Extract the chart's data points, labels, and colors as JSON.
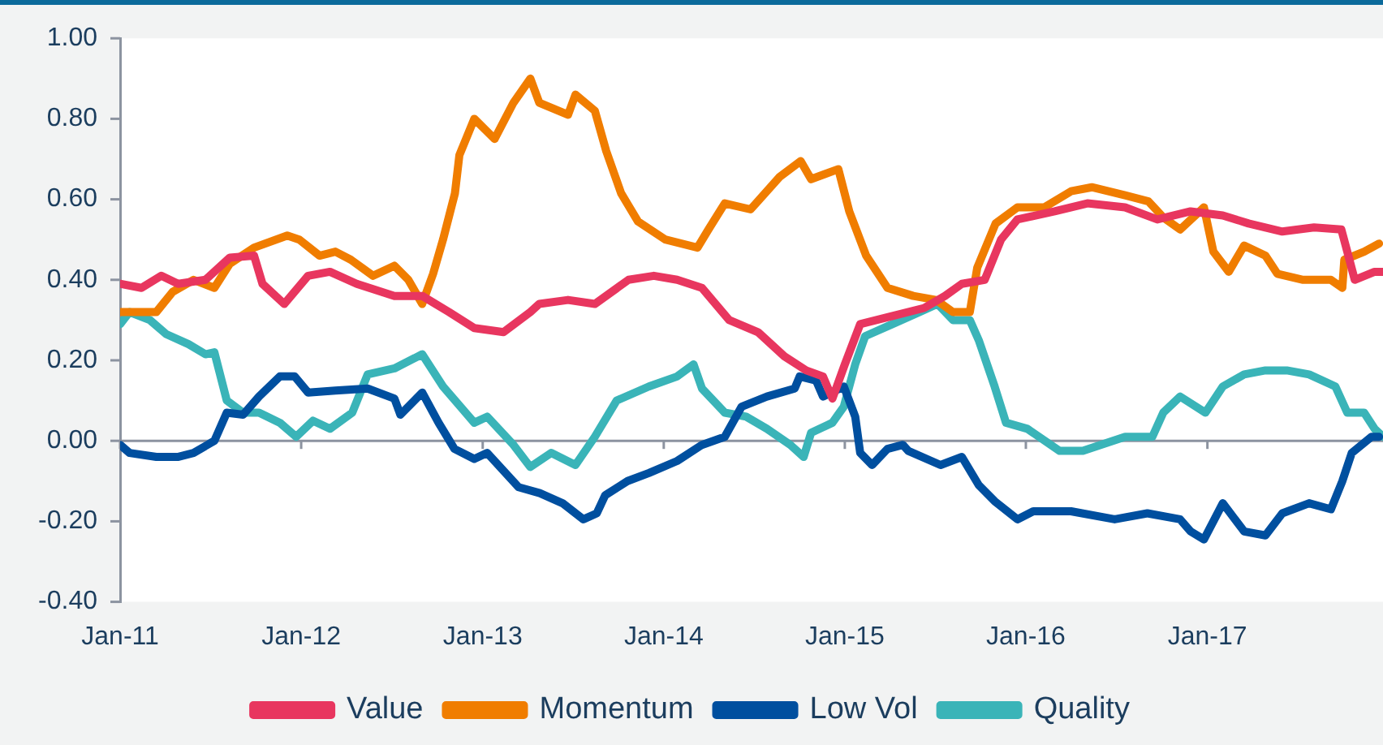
{
  "chart_data": {
    "type": "line",
    "xlim": [
      "2011-01-01",
      "2017-12-21"
    ],
    "ylim": [
      -0.4,
      1
    ],
    "xticks": [
      {
        "value": "2011-01",
        "label": "Jan-11"
      },
      {
        "value": "2012-01",
        "label": "Jan-12"
      },
      {
        "value": "2013-01",
        "label": "Jan-13"
      },
      {
        "value": "2014-01",
        "label": "Jan-14"
      },
      {
        "value": "2015-01",
        "label": "Jan-15"
      },
      {
        "value": "2016-01",
        "label": "Jan-16"
      },
      {
        "value": "2017-01",
        "label": "Jan-17"
      }
    ],
    "yticks": [
      {
        "value": -0.4,
        "label": "-0.40"
      },
      {
        "value": -0.2,
        "label": "-0.20"
      },
      {
        "value": 0,
        "label": "0.00"
      },
      {
        "value": 0.2,
        "label": "0.20"
      },
      {
        "value": 0.4,
        "label": "0.40"
      },
      {
        "value": 0.6,
        "label": "0.60"
      },
      {
        "value": 0.8,
        "label": "0.80"
      },
      {
        "value": 1,
        "label": "1.00"
      }
    ],
    "grid": false,
    "ref_lines": [
      {
        "axis": "y",
        "value": 0,
        "color": "#8c93a0",
        "line_style": "solid"
      }
    ],
    "legend": "bottom",
    "marker": "none",
    "line_style": "solid",
    "series": [
      {
        "name": "Value",
        "color": "#e8365f",
        "x": [
          "2011-01-01",
          "2011-02-13",
          "2011-03-25",
          "2011-04-28",
          "2011-06-22",
          "2011-08-10",
          "2011-09-28",
          "2011-10-15",
          "2011-11-28",
          "2012-01-15",
          "2012-02-28",
          "2012-04-22",
          "2012-07-07",
          "2012-09-01",
          "2012-10-25",
          "2012-12-15",
          "2013-02-12",
          "2013-04-07",
          "2013-04-25",
          "2013-06-22",
          "2013-08-15",
          "2013-10-22",
          "2013-12-12",
          "2014-01-28",
          "2014-03-19",
          "2014-05-13",
          "2014-07-10",
          "2014-09-01",
          "2014-10-15",
          "2014-11-18",
          "2014-12-07",
          "2015-01-01",
          "2015-02-01",
          "2015-04-07",
          "2015-06-10",
          "2015-07-22",
          "2015-08-25",
          "2015-10-10",
          "2015-11-12",
          "2015-12-15",
          "2016-02-28",
          "2016-05-04",
          "2016-07-19",
          "2016-09-22",
          "2016-11-28",
          "2017-02-01",
          "2017-03-25",
          "2017-06-01",
          "2017-08-04",
          "2017-09-28",
          "2017-10-10",
          "2017-10-25",
          "2017-12-04",
          "2017-12-21"
        ],
        "values": [
          0.39,
          0.38,
          0.41,
          0.39,
          0.4,
          0.455,
          0.46,
          0.39,
          0.34,
          0.41,
          0.42,
          0.39,
          0.36,
          0.36,
          0.32,
          0.28,
          0.27,
          0.32,
          0.34,
          0.35,
          0.34,
          0.4,
          0.41,
          0.4,
          0.38,
          0.3,
          0.27,
          0.21,
          0.175,
          0.16,
          0.105,
          0.19,
          0.29,
          0.31,
          0.33,
          0.36,
          0.39,
          0.4,
          0.5,
          0.55,
          0.57,
          0.59,
          0.58,
          0.55,
          0.57,
          0.56,
          0.54,
          0.52,
          0.53,
          0.525,
          0.47,
          0.4,
          0.42,
          0.42
        ]
      },
      {
        "name": "Momentum",
        "color": "#f07d00",
        "x": [
          "2011-01-01",
          "2011-02-13",
          "2011-03-15",
          "2011-04-17",
          "2011-05-29",
          "2011-07-10",
          "2011-08-10",
          "2011-09-28",
          "2011-12-04",
          "2011-12-28",
          "2012-02-07",
          "2012-03-10",
          "2012-04-10",
          "2012-05-25",
          "2012-07-07",
          "2012-08-04",
          "2012-09-01",
          "2012-09-23",
          "2012-10-13",
          "2012-11-06",
          "2012-11-15",
          "2012-12-15",
          "2013-01-25",
          "2013-03-04",
          "2013-04-07",
          "2013-04-25",
          "2013-06-22",
          "2013-07-07",
          "2013-08-15",
          "2013-09-07",
          "2013-10-07",
          "2013-11-10",
          "2014-01-04",
          "2014-03-10",
          "2014-04-01",
          "2014-05-04",
          "2014-06-25",
          "2014-08-22",
          "2014-10-04",
          "2014-10-25",
          "2014-12-19",
          "2015-01-10",
          "2015-02-13",
          "2015-03-28",
          "2015-05-19",
          "2015-07-04",
          "2015-08-07",
          "2015-09-10",
          "2015-09-25",
          "2015-11-01",
          "2015-12-15",
          "2016-02-07",
          "2016-04-01",
          "2016-05-13",
          "2016-07-19",
          "2016-09-04",
          "2016-10-04",
          "2016-11-07",
          "2016-12-25",
          "2017-01-13",
          "2017-02-13",
          "2017-03-16",
          "2017-04-28",
          "2017-05-22",
          "2017-07-13",
          "2017-09-07",
          "2017-09-30",
          "2017-10-04",
          "2017-11-13",
          "2017-12-13"
        ],
        "values": [
          0.32,
          0.32,
          0.32,
          0.37,
          0.4,
          0.38,
          0.44,
          0.48,
          0.51,
          0.5,
          0.46,
          0.47,
          0.45,
          0.41,
          0.435,
          0.4,
          0.34,
          0.415,
          0.5,
          0.615,
          0.71,
          0.8,
          0.75,
          0.84,
          0.9,
          0.84,
          0.81,
          0.86,
          0.82,
          0.72,
          0.615,
          0.545,
          0.5,
          0.48,
          0.525,
          0.59,
          0.575,
          0.655,
          0.695,
          0.65,
          0.675,
          0.57,
          0.46,
          0.38,
          0.36,
          0.35,
          0.32,
          0.32,
          0.43,
          0.54,
          0.58,
          0.58,
          0.62,
          0.63,
          0.61,
          0.595,
          0.555,
          0.525,
          0.58,
          0.47,
          0.42,
          0.485,
          0.46,
          0.415,
          0.4,
          0.4,
          0.38,
          0.45,
          0.47,
          0.49
        ]
      },
      {
        "name": "Low Vol",
        "color": "#004f9f",
        "x": [
          "2011-01-01",
          "2011-01-20",
          "2011-03-15",
          "2011-04-27",
          "2011-05-29",
          "2011-07-10",
          "2011-08-04",
          "2011-09-06",
          "2011-10-08",
          "2011-11-19",
          "2011-12-19",
          "2012-01-15",
          "2012-03-10",
          "2012-05-14",
          "2012-07-07",
          "2012-07-19",
          "2012-09-01",
          "2012-10-04",
          "2012-11-05",
          "2012-12-15",
          "2013-01-10",
          "2013-03-14",
          "2013-04-26",
          "2013-06-11",
          "2013-07-23",
          "2013-08-19",
          "2013-09-05",
          "2013-10-20",
          "2013-12-02",
          "2014-01-28",
          "2014-03-19",
          "2014-05-04",
          "2014-06-07",
          "2014-07-28",
          "2014-09-22",
          "2014-10-02",
          "2014-11-04",
          "2014-11-18",
          "2014-12-30",
          "2015-01-22",
          "2015-02-01",
          "2015-02-25",
          "2015-03-28",
          "2015-04-28",
          "2015-05-09",
          "2015-07-13",
          "2015-08-25",
          "2015-09-28",
          "2015-10-30",
          "2015-12-15",
          "2016-01-16",
          "2016-04-01",
          "2016-06-28",
          "2016-09-02",
          "2016-11-07",
          "2016-11-28",
          "2016-12-25",
          "2017-02-01",
          "2017-03-16",
          "2017-04-28",
          "2017-06-01",
          "2017-07-25",
          "2017-09-07",
          "2017-09-30",
          "2017-10-19",
          "2017-11-28",
          "2017-12-13"
        ],
        "values": [
          -0.01,
          -0.03,
          -0.04,
          -0.04,
          -0.03,
          0.0,
          0.07,
          0.065,
          0.11,
          0.16,
          0.16,
          0.12,
          0.125,
          0.13,
          0.105,
          0.065,
          0.12,
          0.045,
          -0.02,
          -0.045,
          -0.03,
          -0.115,
          -0.13,
          -0.155,
          -0.195,
          -0.18,
          -0.135,
          -0.1,
          -0.08,
          -0.05,
          -0.01,
          0.01,
          0.085,
          0.11,
          0.13,
          0.16,
          0.15,
          0.11,
          0.135,
          0.06,
          -0.03,
          -0.06,
          -0.02,
          -0.01,
          -0.025,
          -0.06,
          -0.04,
          -0.11,
          -0.15,
          -0.195,
          -0.175,
          -0.175,
          -0.195,
          -0.18,
          -0.195,
          -0.225,
          -0.245,
          -0.155,
          -0.225,
          -0.235,
          -0.18,
          -0.155,
          -0.17,
          -0.1,
          -0.03,
          0.01,
          0.01
        ]
      },
      {
        "name": "Quality",
        "color": "#3ab4b8",
        "x": [
          "2011-01-01",
          "2011-01-20",
          "2011-03-02",
          "2011-04-04",
          "2011-05-19",
          "2011-06-22",
          "2011-07-10",
          "2011-08-04",
          "2011-09-06",
          "2011-10-08",
          "2011-11-19",
          "2011-12-22",
          "2012-01-25",
          "2012-02-28",
          "2012-04-13",
          "2012-05-14",
          "2012-07-07",
          "2012-09-01",
          "2012-10-13",
          "2012-12-15",
          "2013-01-10",
          "2013-03-04",
          "2013-04-07",
          "2013-05-19",
          "2013-07-07",
          "2013-08-15",
          "2013-09-28",
          "2013-12-02",
          "2014-01-28",
          "2014-03-02",
          "2014-03-19",
          "2014-05-04",
          "2014-06-16",
          "2014-07-28",
          "2014-09-13",
          "2014-10-10",
          "2014-10-25",
          "2014-12-07",
          "2014-12-30",
          "2015-01-22",
          "2015-02-11",
          "2015-04-07",
          "2015-06-01",
          "2015-07-07",
          "2015-08-07",
          "2015-09-10",
          "2015-09-28",
          "2015-10-30",
          "2015-11-22",
          "2016-01-04",
          "2016-03-09",
          "2016-04-25",
          "2016-07-19",
          "2016-09-12",
          "2016-10-04",
          "2016-11-07",
          "2016-12-28",
          "2017-02-01",
          "2017-03-16",
          "2017-04-28",
          "2017-06-10",
          "2017-07-25",
          "2017-09-16",
          "2017-10-10",
          "2017-11-13",
          "2017-12-04",
          "2017-12-21"
        ],
        "values": [
          0.29,
          0.32,
          0.3,
          0.265,
          0.24,
          0.215,
          0.22,
          0.1,
          0.07,
          0.07,
          0.045,
          0.01,
          0.05,
          0.03,
          0.07,
          0.165,
          0.18,
          0.215,
          0.135,
          0.045,
          0.06,
          -0.01,
          -0.065,
          -0.03,
          -0.06,
          0.01,
          0.1,
          0.135,
          0.16,
          0.19,
          0.13,
          0.07,
          0.06,
          0.03,
          -0.01,
          -0.04,
          0.02,
          0.045,
          0.085,
          0.19,
          0.26,
          0.29,
          0.32,
          0.34,
          0.3,
          0.3,
          0.25,
          0.135,
          0.045,
          0.03,
          -0.025,
          -0.025,
          0.01,
          0.01,
          0.07,
          0.11,
          0.07,
          0.135,
          0.165,
          0.175,
          0.175,
          0.165,
          0.135,
          0.07,
          0.07,
          0.03,
          0.01
        ]
      }
    ]
  }
}
